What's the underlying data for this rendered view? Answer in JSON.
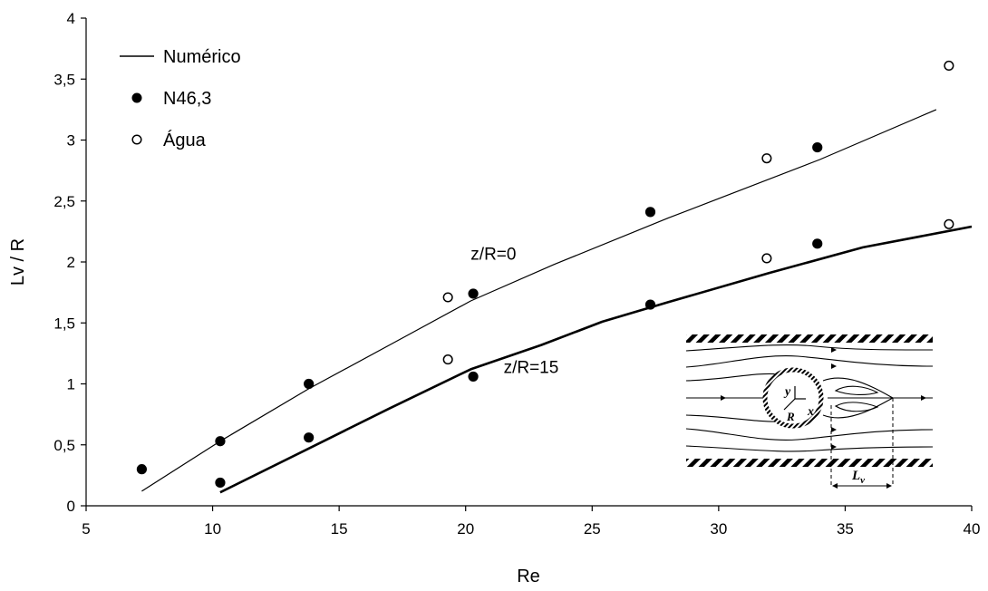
{
  "chart_data": {
    "type": "scatter",
    "xlabel": "Re",
    "ylabel": "Lv / R",
    "xlim": [
      5,
      40
    ],
    "ylim": [
      0,
      4
    ],
    "xticks": [
      "5",
      "10",
      "15",
      "20",
      "25",
      "30",
      "35",
      "40"
    ],
    "yticks": [
      "0",
      "0,5",
      "1",
      "1,5",
      "2",
      "2,5",
      "3",
      "3,5",
      "4"
    ],
    "grid": false,
    "legend_position": "top-left",
    "legend": [
      {
        "label": "Numérico",
        "marker": "line"
      },
      {
        "label": "N46,3",
        "marker": "filled-circle"
      },
      {
        "label": "Água",
        "marker": "open-circle"
      }
    ],
    "series": [
      {
        "legend": "Numérico",
        "annotation": "z/R=0",
        "kind": "line",
        "points": [
          [
            7.2,
            0.12
          ],
          [
            10.3,
            0.53
          ],
          [
            13.8,
            0.96
          ],
          [
            17,
            1.32
          ],
          [
            20.2,
            1.68
          ],
          [
            23.5,
            1.98
          ],
          [
            28,
            2.36
          ],
          [
            30,
            2.52
          ],
          [
            34,
            2.84
          ],
          [
            38.6,
            3.25
          ]
        ]
      },
      {
        "legend": "Numérico",
        "annotation": "z/R=15",
        "kind": "line",
        "bold": true,
        "points": [
          [
            10.3,
            0.11
          ],
          [
            13.8,
            0.47
          ],
          [
            17,
            0.8
          ],
          [
            20.2,
            1.12
          ],
          [
            23,
            1.32
          ],
          [
            25.4,
            1.51
          ],
          [
            28,
            1.67
          ],
          [
            32,
            1.91
          ],
          [
            35.7,
            2.12
          ],
          [
            40,
            2.29
          ]
        ]
      },
      {
        "legend": "N46,3",
        "kind": "filled-circle",
        "points": [
          [
            7.2,
            0.3
          ],
          [
            10.3,
            0.53
          ],
          [
            10.3,
            0.19
          ],
          [
            13.8,
            1.0
          ],
          [
            13.8,
            0.56
          ],
          [
            20.3,
            1.74
          ],
          [
            20.3,
            1.06
          ],
          [
            27.3,
            2.41
          ],
          [
            27.3,
            1.65
          ],
          [
            33.9,
            2.94
          ],
          [
            33.9,
            2.15
          ]
        ]
      },
      {
        "legend": "Água",
        "kind": "open-circle",
        "points": [
          [
            19.3,
            1.71
          ],
          [
            19.3,
            1.2
          ],
          [
            31.9,
            2.85
          ],
          [
            31.9,
            2.03
          ],
          [
            39.1,
            3.61
          ],
          [
            39.1,
            2.31
          ]
        ]
      }
    ],
    "annotations": [
      {
        "text": "z/R=0",
        "at": [
          20.2,
          2.02
        ]
      },
      {
        "text": "z/R=15",
        "at": [
          21.5,
          1.09
        ]
      }
    ],
    "inset": {
      "labels": {
        "y": "y",
        "x": "x",
        "R": "R",
        "Lv": "L",
        "Lv_sub": "v"
      }
    }
  }
}
